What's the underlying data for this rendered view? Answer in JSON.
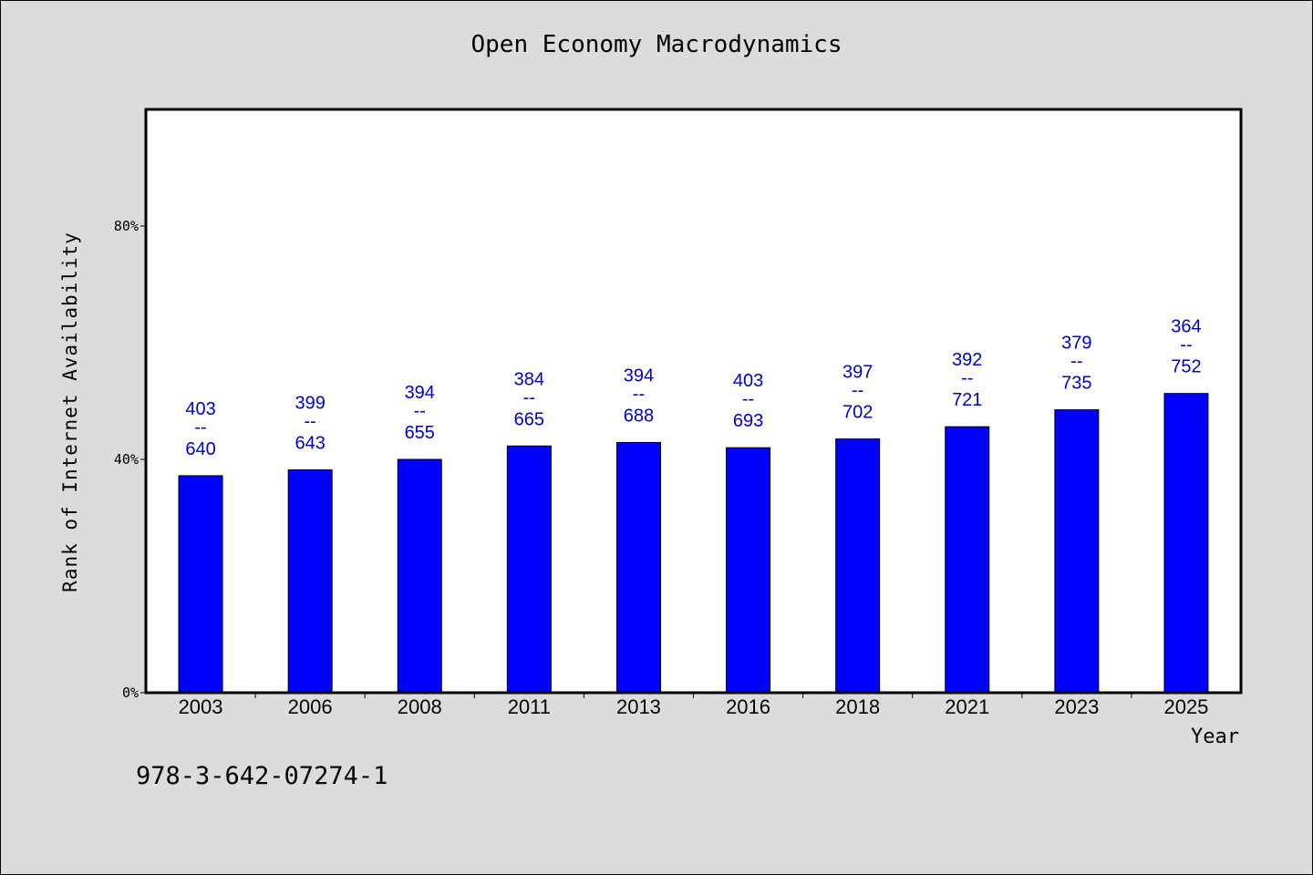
{
  "chart_data": {
    "type": "bar",
    "title": "Open Economy Macrodynamics",
    "xlabel": "Year",
    "ylabel": "Rank of Internet Availability",
    "categories": [
      "2003",
      "2006",
      "2008",
      "2011",
      "2013",
      "2016",
      "2018",
      "2021",
      "2023",
      "2025"
    ],
    "series": [
      {
        "values": [
          37.2,
          38.2,
          40.0,
          42.3,
          42.9,
          42.0,
          43.5,
          45.6,
          48.5,
          51.3
        ]
      }
    ],
    "annotations": {
      "top": [
        "403",
        "399",
        "394",
        "384",
        "394",
        "403",
        "397",
        "392",
        "379",
        "364"
      ],
      "separator": "--",
      "bottom": [
        "640",
        "643",
        "655",
        "665",
        "688",
        "693",
        "702",
        "721",
        "735",
        "752"
      ]
    },
    "ylim": [
      0,
      100
    ],
    "yticks": [
      {
        "value": 0,
        "label": "0%"
      },
      {
        "value": 40,
        "label": "40%"
      },
      {
        "value": 80,
        "label": "80%"
      }
    ],
    "grid": false,
    "colors": {
      "bar": "#0000ff",
      "bar_edge": "#000000",
      "annotation": "#0000cc",
      "plot_background": "#ffffff",
      "page_background": "#dcdcdc"
    }
  },
  "footer": {
    "code": "978-3-642-07274-1"
  }
}
